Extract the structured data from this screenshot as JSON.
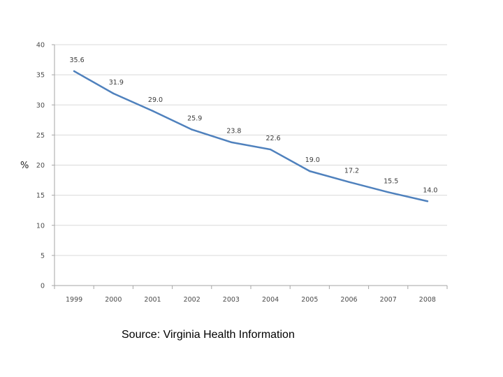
{
  "chart_data": {
    "type": "line",
    "title": "",
    "xlabel": "",
    "ylabel": "%",
    "ylim": [
      0,
      40
    ],
    "yticks": [
      0,
      5,
      10,
      15,
      20,
      25,
      30,
      35,
      40
    ],
    "grid": true,
    "categories": [
      "1999",
      "2000",
      "2001",
      "2002",
      "2003",
      "2004",
      "2005",
      "2006",
      "2007",
      "2008"
    ],
    "series": [
      {
        "name": "%",
        "values": [
          35.6,
          31.9,
          29.0,
          25.9,
          23.8,
          22.6,
          19.0,
          17.2,
          15.5,
          14.0
        ],
        "labels": [
          "35.6",
          "31.9",
          "29.0",
          "25.9",
          "23.8",
          "22.6",
          "19.0",
          "17.2",
          "15.5",
          "14.0"
        ]
      }
    ],
    "colors": {
      "line": "#4f81bd",
      "grid": "#d9d9d9",
      "axis": "#a6a6a6"
    }
  },
  "source": {
    "text": "Source: Virginia Health Information"
  }
}
